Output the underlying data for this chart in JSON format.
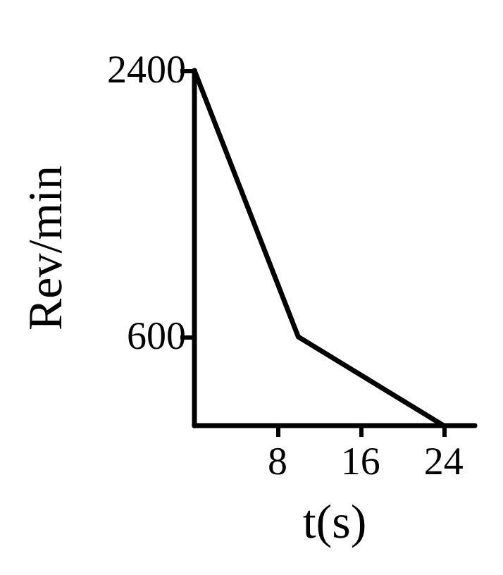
{
  "chart_data": {
    "type": "line",
    "xlabel": "t(s)",
    "ylabel": "Rev/min",
    "x": [
      0,
      10,
      24
    ],
    "series": [
      {
        "color": "#000000",
        "values": [
          2400,
          600,
          0
        ]
      }
    ],
    "xlim": [
      0,
      27
    ],
    "ylim": [
      0,
      2400
    ],
    "xticks": [
      8,
      16,
      24
    ],
    "yticks": [
      600,
      2400
    ],
    "grid": false,
    "marker": "none",
    "line_style": "solid"
  }
}
